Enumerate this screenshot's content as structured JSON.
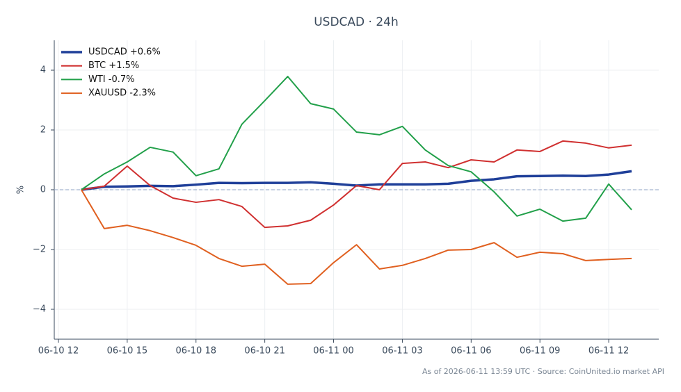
{
  "chart_data": {
    "type": "line",
    "title": "USDCAD · 24h",
    "y_label": "%",
    "footnote": "As of 2026-06-11 13:59 UTC · Source: CoinUnited.io market API",
    "x": [
      "06-10 13",
      "06-10 14",
      "06-10 15",
      "06-10 16",
      "06-10 17",
      "06-10 18",
      "06-10 19",
      "06-10 20",
      "06-10 21",
      "06-10 22",
      "06-10 23",
      "06-11 00",
      "06-11 01",
      "06-11 02",
      "06-11 03",
      "06-11 04",
      "06-11 05",
      "06-11 06",
      "06-11 07",
      "06-11 08",
      "06-11 09",
      "06-11 10",
      "06-11 11",
      "06-11 12",
      "06-11 13"
    ],
    "xlim": [
      "06-10 12",
      "06-11 14"
    ],
    "xticks": [
      "06-10 12",
      "06-10 15",
      "06-10 18",
      "06-10 21",
      "06-11 00",
      "06-11 03",
      "06-11 06",
      "06-11 09",
      "06-11 12"
    ],
    "ylim": [
      -5,
      5
    ],
    "yticks": [
      {
        "value": -4,
        "label": "−4"
      },
      {
        "value": -2,
        "label": "−2"
      },
      0,
      2,
      4
    ],
    "grid": true,
    "reference_line": 0,
    "legend": "upper left",
    "series": [
      {
        "name": "USDCAD +0.6%",
        "color": "#1f3f99",
        "emphasis": true,
        "values": [
          0,
          0.1,
          0.11,
          0.13,
          0.12,
          0.17,
          0.23,
          0.22,
          0.23,
          0.23,
          0.25,
          0.2,
          0.14,
          0.18,
          0.18,
          0.18,
          0.2,
          0.3,
          0.35,
          0.45,
          0.46,
          0.47,
          0.46,
          0.51,
          0.62
        ]
      },
      {
        "name": "BTC +1.5%",
        "color": "#d03030",
        "values": [
          0,
          0.12,
          0.79,
          0.14,
          -0.28,
          -0.42,
          -0.33,
          -0.56,
          -1.26,
          -1.21,
          -1.02,
          -0.51,
          0.14,
          0,
          0.88,
          0.93,
          0.74,
          1.0,
          0.93,
          1.33,
          1.28,
          1.63,
          1.56,
          1.4,
          1.49
        ]
      },
      {
        "name": "WTI -0.7%",
        "color": "#22a04a",
        "values": [
          0,
          0.53,
          0.93,
          1.42,
          1.26,
          0.47,
          0.7,
          2.19,
          2.98,
          3.79,
          2.88,
          2.7,
          1.93,
          1.84,
          2.12,
          1.33,
          0.81,
          0.6,
          -0.07,
          -0.88,
          -0.65,
          -1.05,
          -0.95,
          0.19,
          -0.67
        ]
      },
      {
        "name": "XAUUSD -2.3%",
        "color": "#e06020",
        "values": [
          0,
          -1.3,
          -1.19,
          -1.37,
          -1.6,
          -1.86,
          -2.3,
          -2.56,
          -2.49,
          -3.16,
          -3.14,
          -2.44,
          -1.84,
          -2.65,
          -2.53,
          -2.3,
          -2.02,
          -2.0,
          -1.77,
          -2.26,
          -2.09,
          -2.14,
          -2.37,
          -2.33,
          -2.3
        ]
      }
    ]
  }
}
